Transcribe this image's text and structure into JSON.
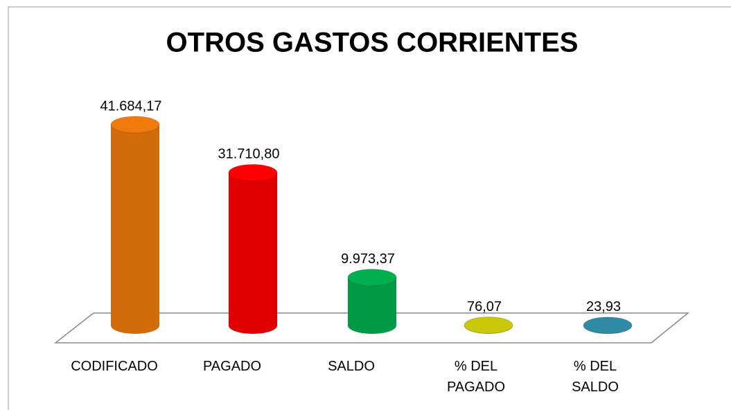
{
  "chart_data": {
    "type": "bar3d",
    "title": "OTROS GASTOS CORRIENTES",
    "categories": [
      "CODIFICADO",
      "PAGADO",
      "SALDO",
      "% DEL PAGADO",
      "% DEL SALDO"
    ],
    "values": [
      41684.17,
      31710.8,
      9973.37,
      76.07,
      23.93
    ],
    "value_labels": [
      "41.684,17",
      "31.710,80",
      "9.973,37",
      "76,07",
      "23,93"
    ],
    "colors": [
      "#f07a0c",
      "#ff0000",
      "#00b050",
      "#c9c70a",
      "#2f8aa6"
    ]
  }
}
